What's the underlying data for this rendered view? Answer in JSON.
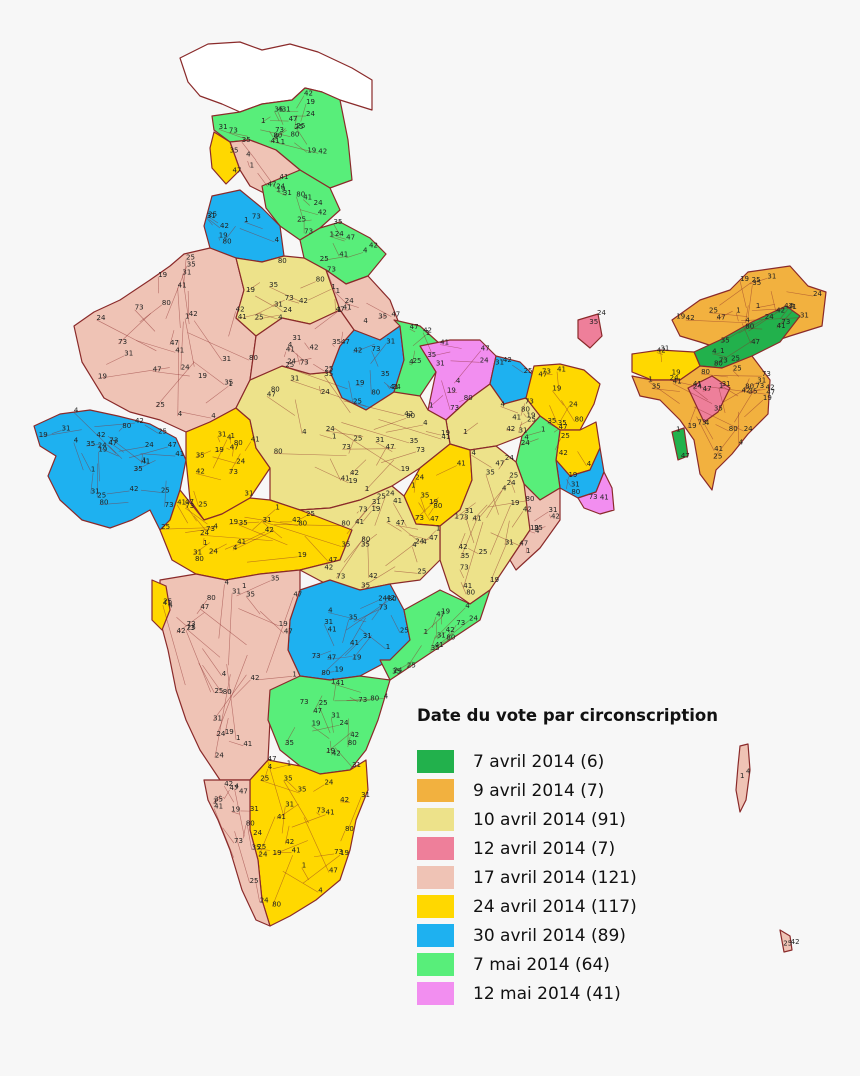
{
  "legend": {
    "title": "Date du vote par circonscription",
    "items": [
      {
        "label": "7 avril 2014 (6)",
        "color": "#22b14c"
      },
      {
        "label": "9 avril 2014 (7)",
        "color": "#f2b13f"
      },
      {
        "label": "10 avril 2014 (91)",
        "color": "#ede28a"
      },
      {
        "label": "12 avril 2014 (7)",
        "color": "#ee7f9a"
      },
      {
        "label": "17 avril 2014 (121)",
        "color": "#efc3b5"
      },
      {
        "label": "24 avril 2014 (117)",
        "color": "#ffd800"
      },
      {
        "label": "30 avril 2014 (89)",
        "color": "#1eb1f0"
      },
      {
        "label": "7 mai 2014 (64)",
        "color": "#58ee7a"
      },
      {
        "label": "12 mai 2014 (41)",
        "color": "#f28ef0"
      }
    ]
  },
  "map": {
    "unassigned_color": "#ffffff",
    "border_color": "#8a2a2a",
    "constituency_numbers": [
      "1",
      "2",
      "3",
      "4",
      "5",
      "6",
      "7",
      "8",
      "9",
      "10",
      "11",
      "12",
      "13",
      "14",
      "15",
      "16",
      "17",
      "18",
      "19",
      "20",
      "21",
      "22",
      "23",
      "24",
      "25",
      "26",
      "27",
      "28",
      "29",
      "30",
      "31",
      "32",
      "33",
      "34",
      "35",
      "36",
      "37",
      "38",
      "39",
      "40",
      "41",
      "42",
      "43",
      "44",
      "45",
      "46",
      "47",
      "48",
      "49",
      "50",
      "51",
      "52",
      "53",
      "54",
      "55",
      "56",
      "57",
      "58",
      "60",
      "63",
      "67",
      "73",
      "76",
      "79",
      "80"
    ]
  }
}
